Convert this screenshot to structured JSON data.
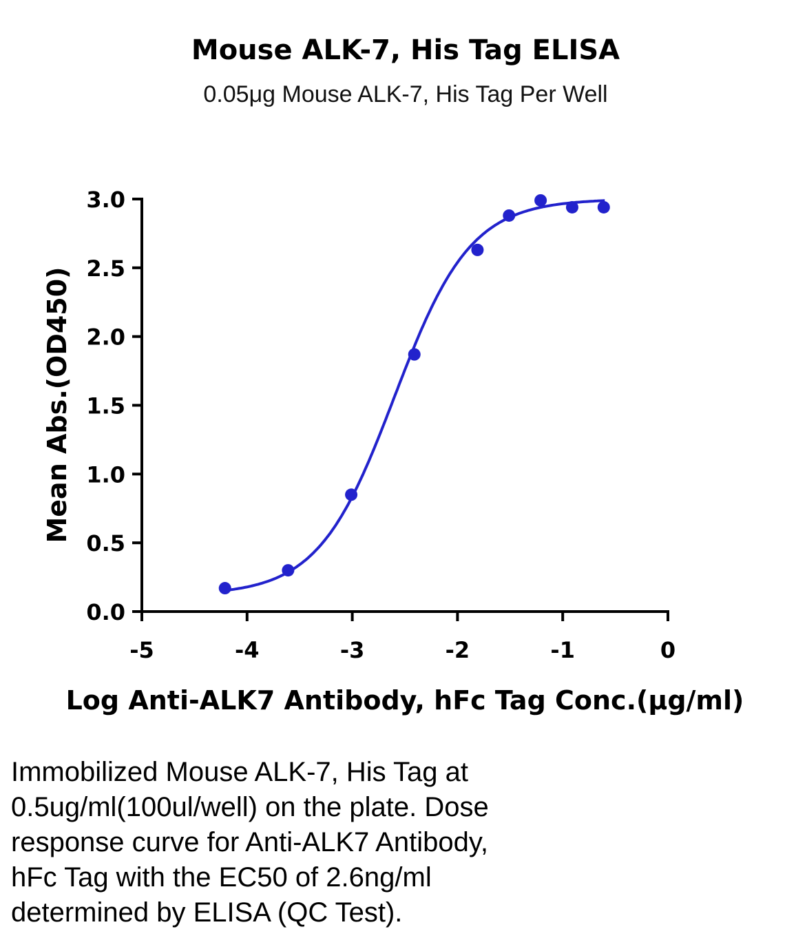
{
  "chart_data": {
    "type": "scatter",
    "title": "Mouse ALK-7, His Tag ELISA",
    "subtitle": "0.05μg Mouse ALK-7, His Tag Per Well",
    "xlabel": "Log Anti-ALK7 Antibody, hFc Tag Conc.(μg/ml)",
    "ylabel": "Mean Abs.(OD450)",
    "xlim": [
      -5,
      0
    ],
    "ylim": [
      0,
      3.0
    ],
    "x_ticks": [
      "-5",
      "-4",
      "-3",
      "-2",
      "-1",
      "0"
    ],
    "y_ticks": [
      "0.0",
      "0.5",
      "1.0",
      "1.5",
      "2.0",
      "2.5",
      "3.0"
    ],
    "series": [
      {
        "x": [
          -4.21,
          -3.61,
          -3.01,
          -2.41,
          -1.81,
          -1.51,
          -1.21,
          -0.91,
          -0.61
        ],
        "y": [
          0.17,
          0.3,
          0.85,
          1.87,
          2.63,
          2.88,
          2.99,
          2.94,
          2.94
        ],
        "color": "#2222cc",
        "fit": "4PL sigmoidal curve"
      }
    ],
    "grid": false
  },
  "caption_lines": [
    "Immobilized Mouse ALK-7, His Tag at",
    "0.5ug/ml(100ul/well) on the plate. Dose",
    "response curve for Anti-ALK7 Antibody,",
    "hFc Tag with the EC50 of 2.6ng/ml",
    "determined by ELISA (QC Test)."
  ]
}
